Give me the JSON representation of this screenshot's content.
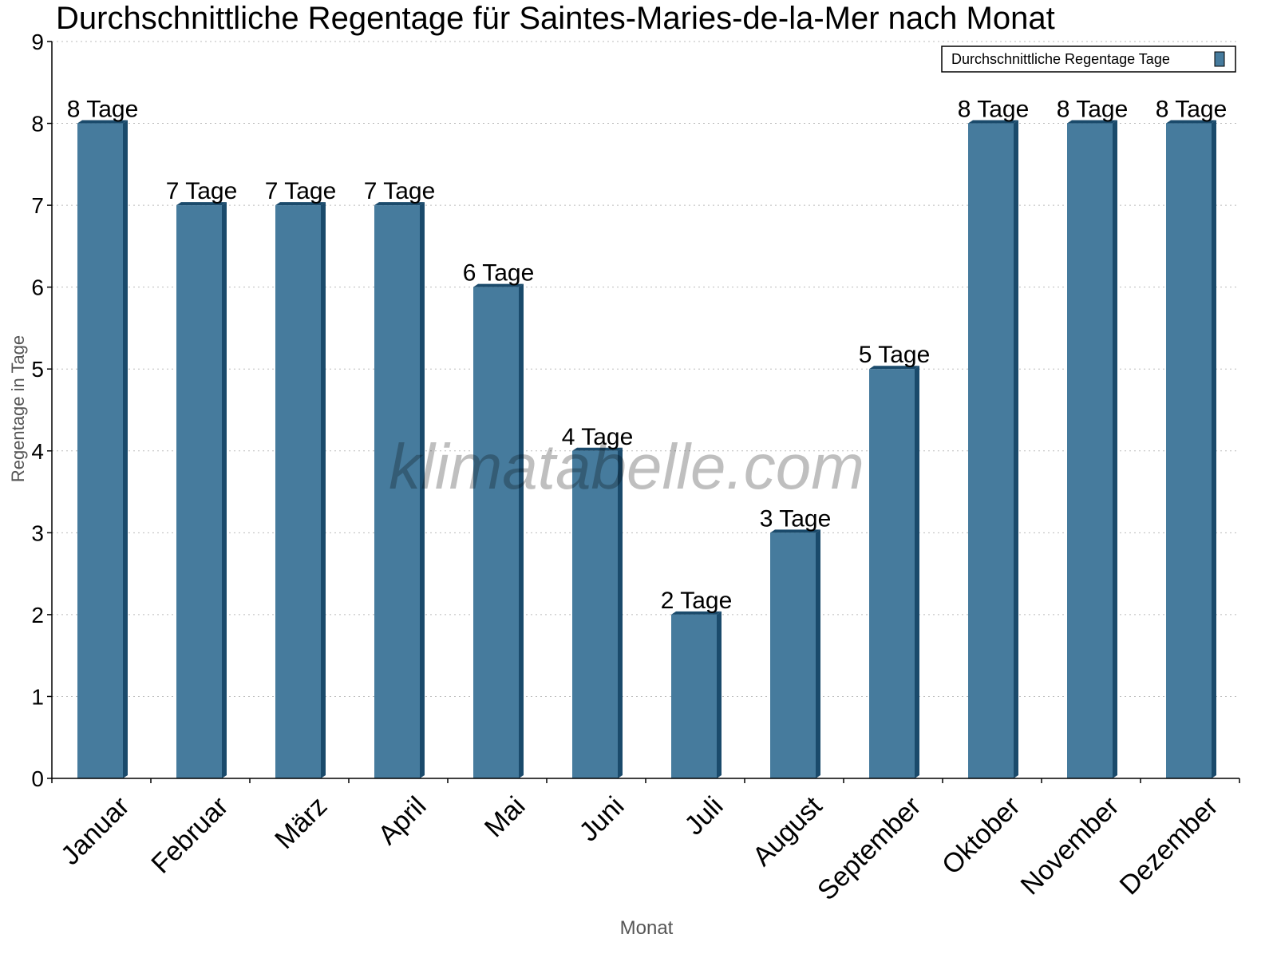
{
  "chart_data": {
    "type": "bar",
    "title": "Durchschnittliche Regentage für Saintes-Maries-de-la-Mer nach Monat",
    "xlabel": "Monat",
    "ylabel": "Regentage in Tage",
    "ylim": [
      0,
      9
    ],
    "yticks": [
      "0",
      "1",
      "2",
      "3",
      "4",
      "5",
      "6",
      "7",
      "8",
      "9"
    ],
    "grid": true,
    "legend_position": "top-right",
    "categories": [
      "Januar",
      "Februar",
      "März",
      "April",
      "Mai",
      "Juni",
      "Juli",
      "August",
      "September",
      "Oktober",
      "November",
      "Dezember"
    ],
    "series": [
      {
        "name": "Durchschnittliche Regentage Tage",
        "values": [
          8,
          7,
          7,
          7,
          6,
          4,
          2,
          3,
          5,
          8,
          8,
          8
        ],
        "data_labels": [
          "8 Tage",
          "7 Tage",
          "7 Tage",
          "7 Tage",
          "6 Tage",
          "4 Tage",
          "2 Tage",
          "3 Tage",
          "5 Tage",
          "8 Tage",
          "8 Tage",
          "8 Tage"
        ],
        "color": "#467b9d",
        "side_color": "#1a4a6b"
      }
    ],
    "watermark": "klimatabelle.com"
  }
}
